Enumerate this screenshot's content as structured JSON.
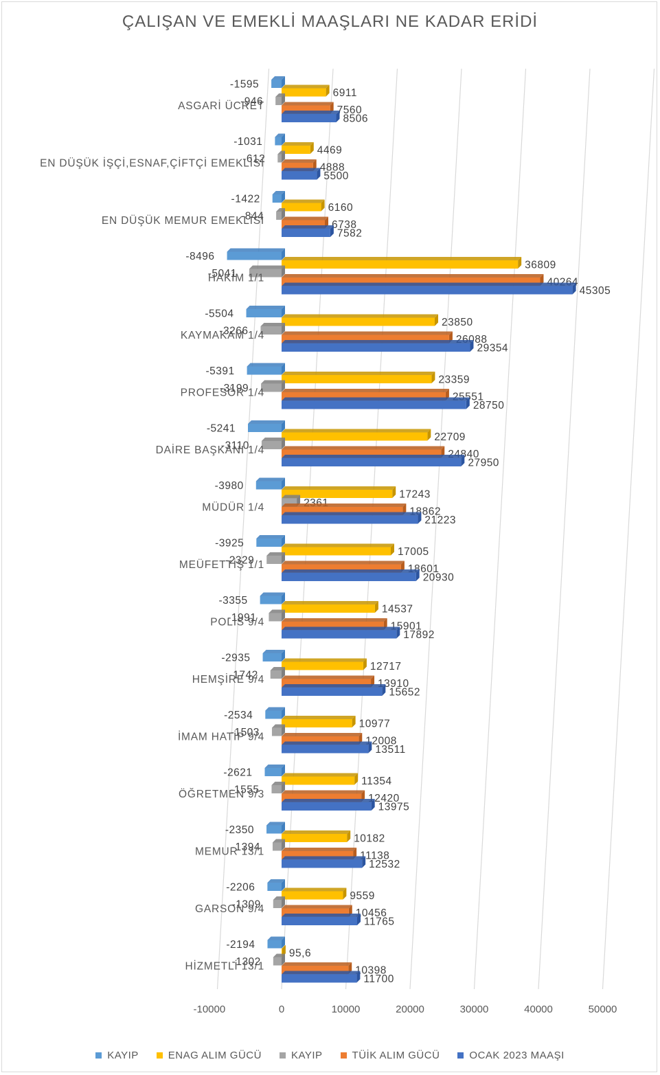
{
  "chart_data": {
    "type": "bar",
    "orientation": "horizontal",
    "title": "ÇALIŞAN VE EMEKLİ MAAŞLARI NE KADAR ERİDİ",
    "categories": [
      "ASGARİ ÜCRET",
      "EN DÜŞÜK İŞÇİ,ESNAF,ÇİFTÇİ EMEKLİSİ",
      "EN DÜŞÜK MEMUR EMEKLİSİ",
      "HAKİM 1/1",
      "KAYMAKAM 1/4",
      "PROFESÖR 1/4",
      "DAİRE BAŞKANI 1/4",
      "MÜDÜR 1/4",
      "MEÜFETTİŞ 1/1",
      "POLİS 9/4",
      "HEMŞİRE 9/4",
      "İMAM HATİP 9/4",
      "ÖĞRETMEN 9/3",
      "MEMUR 13/1",
      "GARSON 9/4",
      "HİZMETLİ 13/1"
    ],
    "series": [
      {
        "name": "KAYIP",
        "color": "#5b9bd5",
        "values": [
          -1595,
          -1031,
          -1422,
          -8496,
          -5504,
          -5391,
          -5241,
          -3980,
          -3925,
          -3355,
          -2935,
          -2534,
          -2621,
          -2350,
          -2206,
          -2194
        ]
      },
      {
        "name": "ENAG ALIM GÜCÜ",
        "color": "#ffc000",
        "values": [
          6911,
          4469,
          6160,
          36809,
          23850,
          23359,
          22709,
          17243,
          17005,
          14537,
          12717,
          10977,
          11354,
          10182,
          9559,
          95.6
        ],
        "labels": [
          "6911",
          "4469",
          "6160",
          "36809",
          "23850",
          "23359",
          "22709",
          "17243",
          "17005",
          "14537",
          "12717",
          "10977",
          "11354",
          "10182",
          "9559",
          "95,6"
        ]
      },
      {
        "name": "KAYIP",
        "color": "#a5a5a5",
        "values": [
          -946,
          -612,
          -844,
          -5041,
          -3266,
          -3199,
          -3110,
          2361,
          -2329,
          -1991,
          -1742,
          -1503,
          -1555,
          -1394,
          -1309,
          -1302
        ]
      },
      {
        "name": "TÜİK ALIM GÜCÜ",
        "color": "#ed7d31",
        "values": [
          7560,
          4888,
          6738,
          40264,
          26088,
          25551,
          24840,
          18862,
          18601,
          15901,
          13910,
          12008,
          12420,
          11138,
          10456,
          10398
        ]
      },
      {
        "name": "OCAK 2023 MAAŞI",
        "color": "#4472c4",
        "values": [
          8506,
          5500,
          7582,
          45305,
          29354,
          28750,
          27950,
          21223,
          20930,
          17892,
          15652,
          13511,
          13975,
          12532,
          11765,
          11700
        ]
      }
    ],
    "xlim": [
      -10000,
      50000
    ],
    "xticks": [
      "-10000",
      "0",
      "10000",
      "20000",
      "30000",
      "40000",
      "50000"
    ],
    "grid": true,
    "legend": "bottom"
  }
}
